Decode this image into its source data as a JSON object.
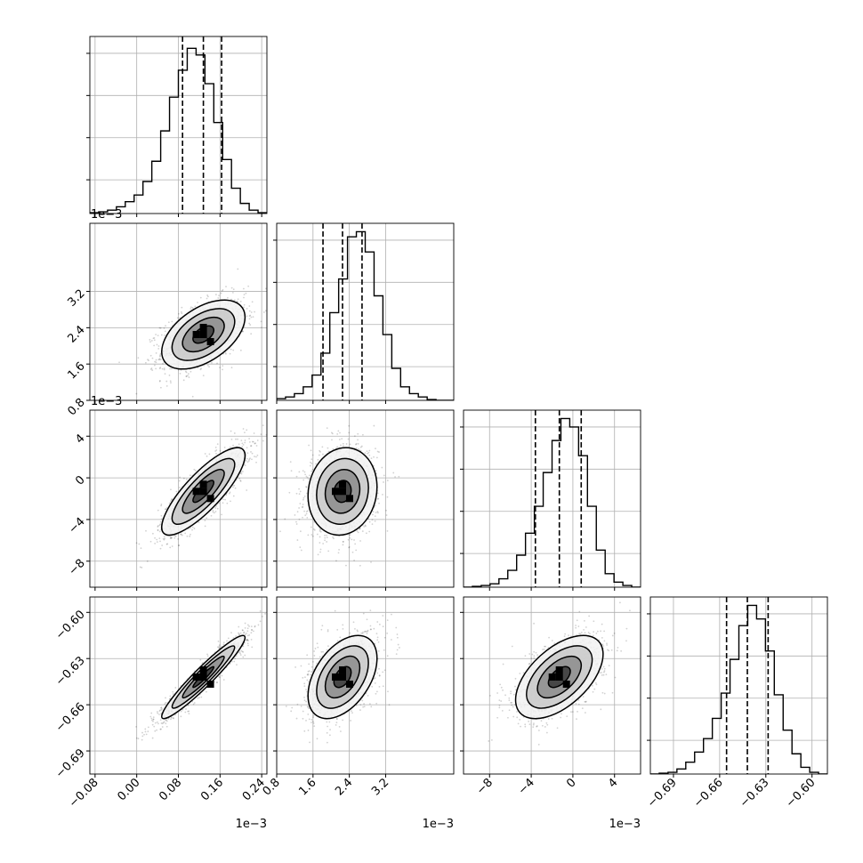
{
  "chart_data": {
    "type": "corner",
    "grid": true,
    "parameters": [
      {
        "range": [
          -0.09,
          0.25
        ],
        "ticks": [
          -0.08,
          0.0,
          0.08,
          0.16,
          0.24
        ],
        "tick_labels": [
          "−0.08",
          "0.00",
          "0.08",
          "0.16",
          "0.24"
        ],
        "scale_label": "1e−3",
        "quantiles": [
          0.088,
          0.128,
          0.163
        ],
        "hist_bins": [
          -0.09,
          -0.073,
          -0.056,
          -0.039,
          -0.022,
          -0.005,
          0.012,
          0.029,
          0.046,
          0.063,
          0.08,
          0.097,
          0.114,
          0.131,
          0.148,
          0.165,
          0.182,
          0.199,
          0.216,
          0.233,
          0.25
        ],
        "hist_counts": [
          0.005,
          0.01,
          0.02,
          0.04,
          0.07,
          0.11,
          0.19,
          0.31,
          0.49,
          0.69,
          0.85,
          0.98,
          0.94,
          0.77,
          0.54,
          0.32,
          0.15,
          0.06,
          0.02,
          0.005
        ],
        "hist_ymax": 1.05,
        "hist_ticks": [
          0.2,
          0.45,
          0.7,
          0.95
        ]
      },
      {
        "range": [
          0.8,
          4.7
        ],
        "ticks": [
          0.8,
          1.6,
          2.4,
          3.2
        ],
        "tick_labels": [
          "0.8",
          "1.6",
          "2.4",
          "3.2"
        ],
        "scale_label": "1e−3",
        "quantiles": [
          1.82,
          2.25,
          2.68
        ],
        "hist_bins": [
          0.8,
          0.995,
          1.19,
          1.385,
          1.58,
          1.775,
          1.97,
          2.165,
          2.36,
          2.555,
          2.75,
          2.945,
          3.14,
          3.335,
          3.53,
          3.725,
          3.92,
          4.115,
          4.31,
          4.505,
          4.7
        ],
        "hist_counts": [
          0.01,
          0.02,
          0.04,
          0.08,
          0.15,
          0.28,
          0.52,
          0.72,
          0.97,
          1.0,
          0.88,
          0.62,
          0.39,
          0.19,
          0.08,
          0.04,
          0.02,
          0.005,
          0.0,
          0.0
        ],
        "hist_ymax": 1.05,
        "hist_ticks": [
          0.2,
          0.45,
          0.7,
          0.95
        ]
      },
      {
        "range": [
          -10.5,
          6.5
        ],
        "ticks": [
          -8,
          -4,
          0,
          4
        ],
        "tick_labels": [
          "−8",
          "−4",
          "0",
          "4"
        ],
        "scale_label": "1e−3",
        "quantiles": [
          -3.6,
          -1.3,
          0.8
        ],
        "hist_bins": [
          -10.5,
          -9.65,
          -8.8,
          -7.95,
          -7.1,
          -6.25,
          -5.4,
          -4.55,
          -3.7,
          -2.85,
          -2.0,
          -1.15,
          -0.3,
          0.55,
          1.4,
          2.25,
          3.1,
          3.95,
          4.8,
          5.65,
          6.5
        ],
        "hist_counts": [
          0.0,
          0.005,
          0.01,
          0.02,
          0.05,
          0.1,
          0.19,
          0.32,
          0.48,
          0.68,
          0.87,
          1.0,
          0.95,
          0.78,
          0.48,
          0.22,
          0.08,
          0.03,
          0.01,
          0.0
        ],
        "hist_ymax": 1.05,
        "hist_ticks": [
          0.2,
          0.45,
          0.7,
          0.95
        ]
      },
      {
        "range": [
          -0.705,
          -0.59
        ],
        "ticks": [
          -0.69,
          -0.66,
          -0.63,
          -0.6
        ],
        "tick_labels": [
          "−0.69",
          "−0.66",
          "−0.63",
          "−0.60"
        ],
        "scale_label": "",
        "quantiles": [
          -0.6555,
          -0.642,
          -0.6285
        ],
        "hist_bins": [
          -0.705,
          -0.69925,
          -0.6935,
          -0.68775,
          -0.682,
          -0.67625,
          -0.6705,
          -0.66475,
          -0.659,
          -0.65325,
          -0.6475,
          -0.64175,
          -0.636,
          -0.63025,
          -0.6245,
          -0.61875,
          -0.613,
          -0.60725,
          -0.6015,
          -0.59575,
          -0.59
        ],
        "hist_counts": [
          0.0,
          0.005,
          0.01,
          0.03,
          0.07,
          0.13,
          0.21,
          0.33,
          0.48,
          0.68,
          0.88,
          1.0,
          0.92,
          0.73,
          0.47,
          0.26,
          0.12,
          0.04,
          0.01,
          0.0
        ],
        "hist_ymax": 1.05,
        "hist_ticks": [
          0.2,
          0.45,
          0.7,
          0.95
        ]
      }
    ],
    "pairs": [
      {
        "x": 0,
        "y": 1,
        "mean": [
          0.128,
          2.25
        ],
        "sd": [
          0.04,
          0.38
        ],
        "rho": 0.5
      },
      {
        "x": 0,
        "y": 2,
        "mean": [
          0.128,
          -1.3
        ],
        "sd": [
          0.04,
          2.1
        ],
        "rho": 0.82
      },
      {
        "x": 1,
        "y": 2,
        "mean": [
          2.25,
          -1.3
        ],
        "sd": [
          0.38,
          2.1
        ],
        "rho": 0.1
      },
      {
        "x": 0,
        "y": 3,
        "mean": [
          0.128,
          -0.642
        ],
        "sd": [
          0.04,
          0.0135
        ],
        "rho": 0.95
      },
      {
        "x": 1,
        "y": 3,
        "mean": [
          2.25,
          -0.642
        ],
        "sd": [
          0.38,
          0.0135
        ],
        "rho": 0.45
      },
      {
        "x": 2,
        "y": 3,
        "mean": [
          -1.3,
          -0.642
        ],
        "sd": [
          2.1,
          0.0135
        ],
        "rho": 0.55
      }
    ],
    "contour_levels_sigma": [
      0.5,
      1.0,
      1.5,
      2.0
    ]
  }
}
